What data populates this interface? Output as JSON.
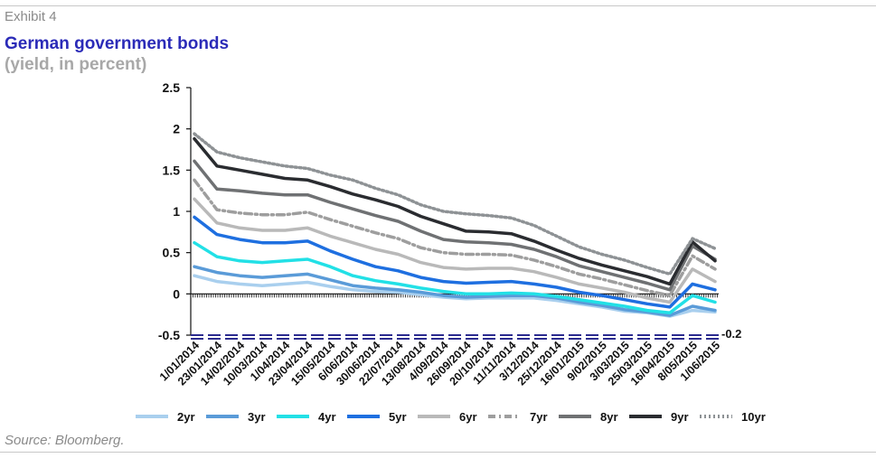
{
  "header": {
    "exhibit": "Exhibit 4",
    "title": "German government bonds",
    "subtitle": "(yield, in percent)"
  },
  "footer": {
    "source": "Source: Bloomberg."
  },
  "chart_data": {
    "type": "line",
    "title": "German government bonds",
    "subtitle": "(yield, in percent)",
    "xlabel": "",
    "ylabel": "",
    "ylim": [
      -0.5,
      2.5
    ],
    "yticks": [
      2.5,
      2,
      1.5,
      1,
      0.5,
      0,
      -0.5
    ],
    "ytick_labels": [
      "2.5",
      "2",
      "1.5",
      "1",
      "0.5",
      "0",
      "-0.5"
    ],
    "x_tick_labels": [
      "1/01/2014",
      "23/01/2014",
      "14/02/2014",
      "10/03/2014",
      "1/04/2014",
      "23/04/2014",
      "15/05/2014",
      "6/06/2014",
      "30/06/2014",
      "22/07/2014",
      "13/08/2014",
      "4/09/2014",
      "26/09/2014",
      "20/10/2014",
      "11/11/2014",
      "3/12/2014",
      "25/12/2014",
      "16/01/2015",
      "9/02/2015",
      "3/03/2015",
      "25/03/2015",
      "16/04/2015",
      "8/05/2015",
      "1/06/2015"
    ],
    "reference_line": {
      "value": -0.2,
      "label": "-0.2",
      "color": "#2b2b8f"
    },
    "legend_position": "bottom",
    "grid": false,
    "series": [
      {
        "name": "2yr",
        "color": "#a9cfee",
        "dash": "solid",
        "values": [
          0.22,
          0.15,
          0.12,
          0.1,
          0.12,
          0.14,
          0.09,
          0.05,
          0.03,
          0.02,
          -0.01,
          -0.04,
          -0.06,
          -0.05,
          -0.05,
          -0.05,
          -0.08,
          -0.12,
          -0.16,
          -0.21,
          -0.23,
          -0.27,
          -0.2,
          -0.22
        ]
      },
      {
        "name": "3yr",
        "color": "#5a9bd8",
        "dash": "solid",
        "values": [
          0.33,
          0.26,
          0.22,
          0.2,
          0.22,
          0.24,
          0.17,
          0.1,
          0.07,
          0.05,
          0.02,
          -0.02,
          -0.04,
          -0.03,
          -0.02,
          -0.02,
          -0.05,
          -0.1,
          -0.14,
          -0.19,
          -0.22,
          -0.26,
          -0.15,
          -0.2
        ]
      },
      {
        "name": "4yr",
        "color": "#22e0e6",
        "dash": "solid",
        "values": [
          0.62,
          0.45,
          0.4,
          0.38,
          0.4,
          0.42,
          0.33,
          0.22,
          0.16,
          0.12,
          0.07,
          0.03,
          0.0,
          0.0,
          0.01,
          0.0,
          -0.03,
          -0.07,
          -0.11,
          -0.15,
          -0.2,
          -0.23,
          -0.02,
          -0.1
        ]
      },
      {
        "name": "5yr",
        "color": "#1e6fe0",
        "dash": "solid",
        "values": [
          0.93,
          0.72,
          0.66,
          0.62,
          0.62,
          0.64,
          0.52,
          0.42,
          0.33,
          0.28,
          0.2,
          0.15,
          0.13,
          0.14,
          0.15,
          0.12,
          0.08,
          0.02,
          -0.02,
          -0.07,
          -0.12,
          -0.16,
          0.12,
          0.05
        ]
      },
      {
        "name": "6yr",
        "color": "#b9b9b9",
        "dash": "solid",
        "values": [
          1.15,
          0.86,
          0.8,
          0.77,
          0.77,
          0.8,
          0.7,
          0.62,
          0.54,
          0.48,
          0.38,
          0.32,
          0.3,
          0.31,
          0.31,
          0.27,
          0.2,
          0.12,
          0.07,
          0.02,
          -0.05,
          -0.1,
          0.3,
          0.15
        ]
      },
      {
        "name": "7yr",
        "color": "#9e9e9e",
        "dash": "dashdot",
        "values": [
          1.38,
          1.02,
          0.98,
          0.96,
          0.96,
          0.99,
          0.9,
          0.82,
          0.74,
          0.67,
          0.56,
          0.5,
          0.48,
          0.48,
          0.47,
          0.41,
          0.33,
          0.24,
          0.18,
          0.11,
          0.04,
          -0.02,
          0.46,
          0.3
        ]
      },
      {
        "name": "8yr",
        "color": "#6f7173",
        "dash": "solid",
        "values": [
          1.61,
          1.27,
          1.25,
          1.22,
          1.2,
          1.2,
          1.11,
          1.03,
          0.95,
          0.88,
          0.76,
          0.66,
          0.63,
          0.62,
          0.6,
          0.54,
          0.45,
          0.34,
          0.27,
          0.2,
          0.13,
          0.05,
          0.58,
          0.42
        ]
      },
      {
        "name": "9yr",
        "color": "#2a2c30",
        "dash": "solid",
        "values": [
          1.88,
          1.55,
          1.5,
          1.45,
          1.4,
          1.38,
          1.3,
          1.21,
          1.14,
          1.06,
          0.94,
          0.85,
          0.76,
          0.75,
          0.73,
          0.64,
          0.53,
          0.43,
          0.35,
          0.28,
          0.21,
          0.12,
          0.63,
          0.4
        ]
      },
      {
        "name": "10yr",
        "color": "#8e9295",
        "dash": "dotted",
        "values": [
          1.94,
          1.72,
          1.65,
          1.6,
          1.55,
          1.52,
          1.44,
          1.38,
          1.28,
          1.2,
          1.08,
          1.0,
          0.97,
          0.95,
          0.92,
          0.83,
          0.7,
          0.57,
          0.48,
          0.41,
          0.32,
          0.24,
          0.67,
          0.55
        ]
      }
    ]
  }
}
